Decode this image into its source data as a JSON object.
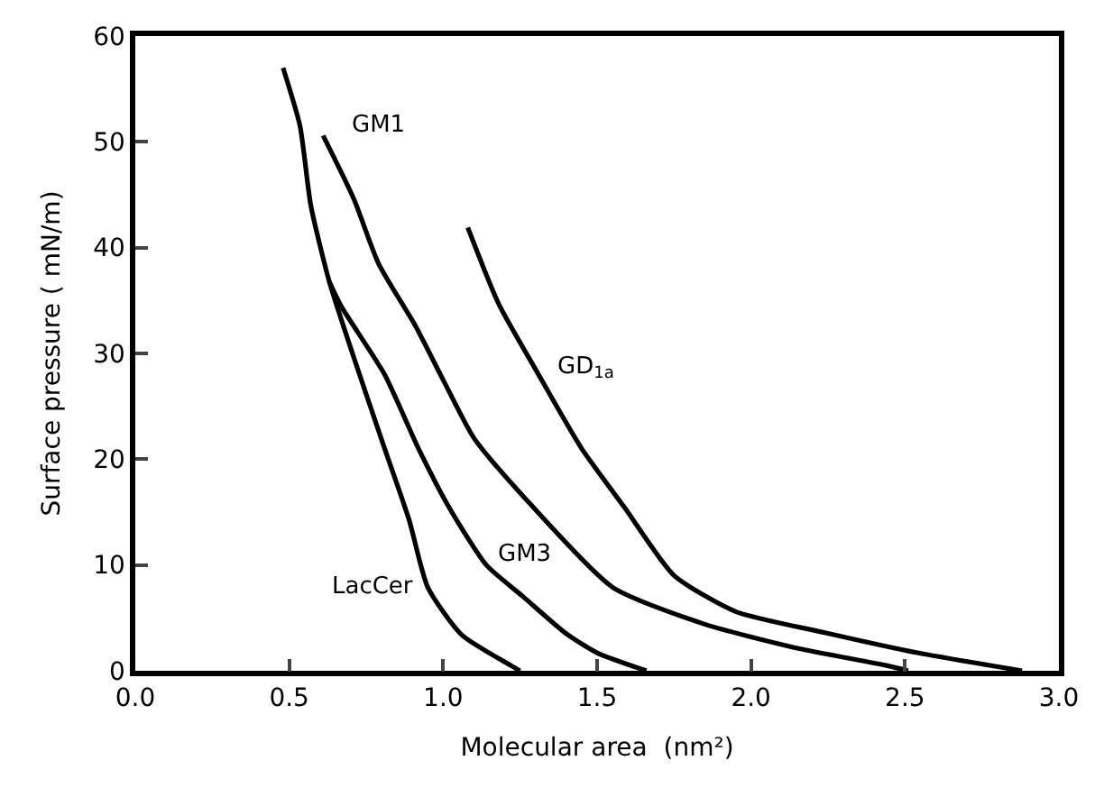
{
  "chart_data": {
    "type": "line",
    "xlabel": "Molecular area  (nm²)",
    "ylabel": "Surface pressure ( mN/m)",
    "xlim": [
      0,
      3
    ],
    "ylim": [
      0,
      60
    ],
    "xticks": [
      {
        "value": 0,
        "label": "0.0"
      },
      {
        "value": 0.5,
        "label": "0.5"
      },
      {
        "value": 1,
        "label": "1.0"
      },
      {
        "value": 1.5,
        "label": "1.5"
      },
      {
        "value": 2,
        "label": "2.0"
      },
      {
        "value": 2.5,
        "label": "2.5"
      },
      {
        "value": 3,
        "label": "3.0"
      }
    ],
    "yticks": [
      0,
      10,
      20,
      30,
      40,
      50,
      60
    ],
    "marker": "none",
    "line_style": "solid",
    "series": [
      {
        "name": "LacCer",
        "color": "#000000",
        "x": [
          0.48,
          0.535,
          0.57,
          0.63,
          0.71,
          0.81,
          0.89,
          0.95,
          1.06,
          1.22,
          1.25
        ],
        "values": [
          57,
          51.5,
          44,
          36.8,
          29.6,
          21,
          14.2,
          7.9,
          3.4,
          0.5,
          0
        ]
      },
      {
        "name": "GM3",
        "color": "#000000",
        "x": [
          0.63,
          0.67,
          0.81,
          0.92,
          1.02,
          1.14,
          1.26,
          1.4,
          1.5,
          1.66
        ],
        "values": [
          36.8,
          34.4,
          28,
          21,
          15.4,
          10,
          7,
          3.5,
          1.7,
          0
        ]
      },
      {
        "name": "GM1",
        "color": "#000000",
        "x": [
          0.61,
          0.71,
          0.79,
          0.91,
          1.0,
          1.1,
          1.26,
          1.55,
          1.85,
          2.14,
          2.44,
          2.51
        ],
        "values": [
          50.6,
          44.6,
          38.5,
          32.6,
          27.5,
          22,
          16.5,
          7.9,
          4.4,
          2.2,
          0.5,
          0
        ]
      },
      {
        "name": "GD$_{1a}$",
        "color": "#000000",
        "x": [
          1.08,
          1.18,
          1.3,
          1.45,
          1.59,
          1.75,
          1.95,
          2.24,
          2.54,
          2.88
        ],
        "values": [
          41.9,
          34.7,
          28.5,
          21,
          15.4,
          9,
          5.6,
          3.6,
          1.7,
          0
        ]
      }
    ]
  }
}
